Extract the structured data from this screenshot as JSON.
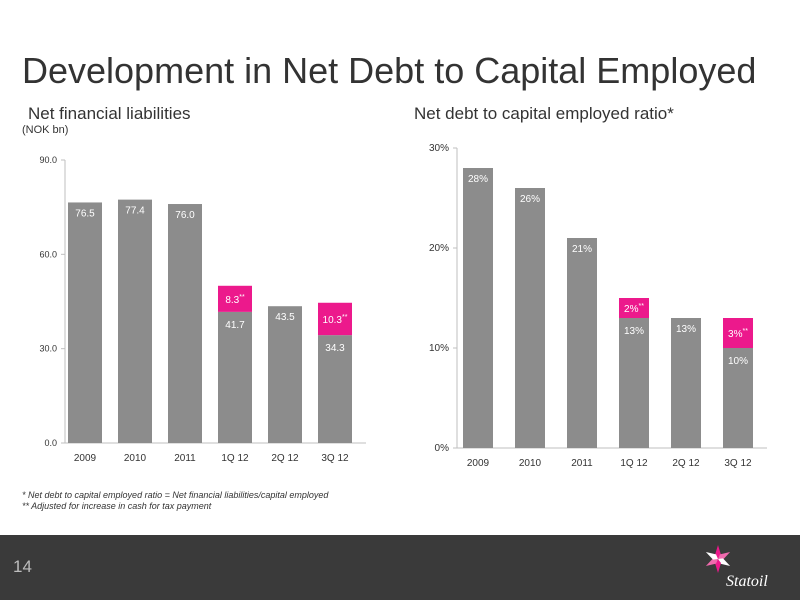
{
  "page": {
    "title": "Development in Net Debt to Capital Employed",
    "page_number": "14",
    "logo_text": "Statoil"
  },
  "colors": {
    "bar": "#8c8c8c",
    "highlight": "#ec198c",
    "axis": "#bfbfbf",
    "footer": "#3a3a3a"
  },
  "footnotes": [
    "* Net debt to capital employed ratio = Net financial liabilities/capital employed",
    "** Adjusted for increase in cash for tax payment"
  ],
  "chart_data": [
    {
      "type": "bar",
      "title": "Net financial liabilities",
      "unit": "(NOK bn)",
      "categories": [
        "2009",
        "2010",
        "2011",
        "1Q 12",
        "2Q 12",
        "3Q 12"
      ],
      "series": [
        {
          "values": [
            76.5,
            77.4,
            76.0,
            41.7,
            43.5,
            34.3
          ],
          "labels": [
            "76.5",
            "77.4",
            "76.0",
            "41.7",
            "43.5",
            "34.3"
          ]
        },
        {
          "values": [
            null,
            null,
            null,
            8.3,
            null,
            10.3
          ],
          "labels": [
            "",
            "",
            "",
            "8.3",
            "",
            "10.3"
          ],
          "suffix": "**"
        }
      ],
      "stacked": true,
      "ylim": [
        0,
        90
      ],
      "yticks": [
        0,
        30,
        60,
        90
      ],
      "ytick_labels": [
        "0.0",
        "30.0",
        "60.0",
        "90.0"
      ],
      "grid": false
    },
    {
      "type": "bar",
      "title": "Net debt to capital employed ratio*",
      "categories": [
        "2009",
        "2010",
        "2011",
        "1Q 12",
        "2Q 12",
        "3Q 12"
      ],
      "series": [
        {
          "values": [
            28,
            26,
            21,
            13,
            13,
            10
          ],
          "labels": [
            "28%",
            "26%",
            "21%",
            "13%",
            "13%",
            "10%"
          ]
        },
        {
          "values": [
            null,
            null,
            null,
            2,
            null,
            3
          ],
          "labels": [
            "",
            "",
            "",
            "2%",
            "",
            "3%"
          ],
          "suffix": "**"
        }
      ],
      "stacked": true,
      "ylim": [
        0,
        30
      ],
      "yticks": [
        0,
        10,
        20,
        30
      ],
      "ytick_labels": [
        "0%",
        "10%",
        "20%",
        "30%"
      ],
      "grid": false
    }
  ]
}
